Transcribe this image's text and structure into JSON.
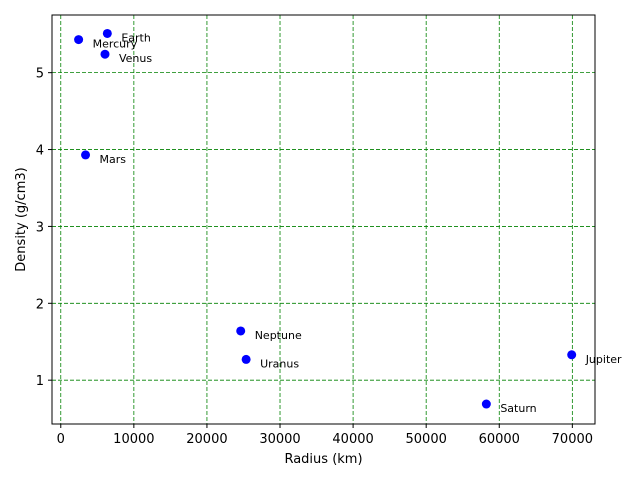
{
  "chart_data": {
    "type": "scatter",
    "xlabel": "Radius (km)",
    "ylabel": "Density (g/cm3)",
    "xlim": [
      -1200,
      73100
    ],
    "ylim": [
      0.43,
      5.75
    ],
    "xticks": [
      0,
      10000,
      20000,
      30000,
      40000,
      50000,
      60000,
      70000
    ],
    "yticks": [
      1,
      2,
      3,
      4,
      5
    ],
    "grid": true,
    "grid_color": "#008000",
    "marker_color": "#0000ff",
    "points": [
      {
        "label": "Mercury",
        "x": 2440,
        "y": 5.43
      },
      {
        "label": "Venus",
        "x": 6052,
        "y": 5.24
      },
      {
        "label": "Earth",
        "x": 6371,
        "y": 5.51
      },
      {
        "label": "Mars",
        "x": 3390,
        "y": 3.93
      },
      {
        "label": "Jupiter",
        "x": 69911,
        "y": 1.33
      },
      {
        "label": "Saturn",
        "x": 58232,
        "y": 0.69
      },
      {
        "label": "Uranus",
        "x": 25362,
        "y": 1.27
      },
      {
        "label": "Neptune",
        "x": 24622,
        "y": 1.64
      }
    ]
  }
}
